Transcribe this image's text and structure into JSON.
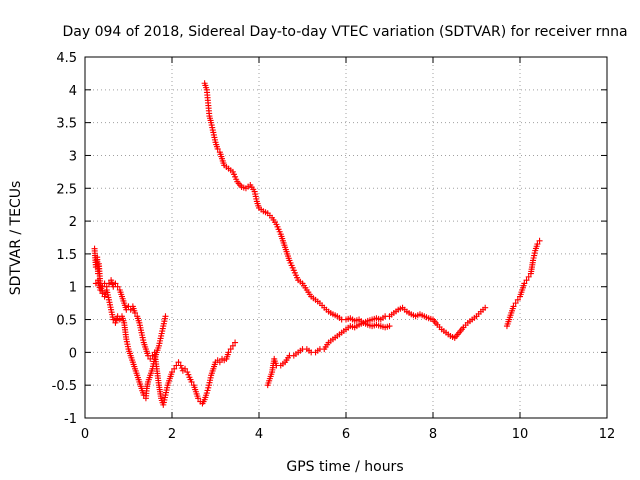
{
  "chart_data": {
    "type": "scatter",
    "title": "Day 094 of 2018, Sidereal Day-to-day VTEC variation (SDTVAR) for receiver rnna",
    "xlabel": "GPS time / hours",
    "ylabel": "SDTVAR / TECUs",
    "xlim": [
      0,
      12
    ],
    "ylim": [
      -1,
      4.5
    ],
    "xticks": [
      0,
      2,
      4,
      6,
      8,
      10,
      12
    ],
    "yticks": [
      -1,
      -0.5,
      0,
      0.5,
      1,
      1.5,
      2,
      2.5,
      3,
      3.5,
      4,
      4.5
    ],
    "grid": true,
    "marker": "+",
    "color": "#ff0000",
    "series": [
      {
        "points": [
          [
            0.22,
            1.58
          ],
          [
            0.25,
            1.3
          ],
          [
            0.28,
            1.45
          ],
          [
            0.3,
            1.2
          ],
          [
            0.32,
            1.35
          ],
          [
            0.35,
            1.05
          ],
          [
            0.4,
            0.9
          ],
          [
            0.45,
            0.85
          ],
          [
            0.5,
            0.95
          ],
          [
            0.55,
            0.8
          ],
          [
            0.6,
            0.65
          ],
          [
            0.65,
            0.5
          ],
          [
            0.7,
            0.45
          ],
          [
            0.75,
            0.55
          ],
          [
            0.8,
            0.5
          ],
          [
            0.85,
            0.55
          ],
          [
            0.9,
            0.45
          ],
          [
            0.95,
            0.2
          ],
          [
            1.0,
            0.05
          ],
          [
            1.05,
            -0.05
          ],
          [
            1.1,
            -0.15
          ],
          [
            1.15,
            -0.25
          ],
          [
            1.2,
            -0.35
          ],
          [
            1.25,
            -0.45
          ],
          [
            1.3,
            -0.55
          ],
          [
            1.35,
            -0.65
          ],
          [
            1.4,
            -0.7
          ],
          [
            1.42,
            -0.55
          ],
          [
            1.45,
            -0.45
          ],
          [
            1.5,
            -0.35
          ],
          [
            1.55,
            -0.25
          ],
          [
            1.6,
            -0.1
          ],
          [
            1.65,
            0.0
          ],
          [
            1.7,
            0.1
          ],
          [
            1.75,
            0.25
          ],
          [
            1.8,
            0.4
          ],
          [
            1.85,
            0.55
          ]
        ]
      },
      {
        "points": [
          [
            0.25,
            1.05
          ],
          [
            0.3,
            1.1
          ],
          [
            0.35,
            0.95
          ],
          [
            0.4,
            1.0
          ],
          [
            0.45,
            1.05
          ],
          [
            0.5,
            1.0
          ],
          [
            0.55,
            1.05
          ],
          [
            0.6,
            1.1
          ],
          [
            0.65,
            1.0
          ],
          [
            0.7,
            1.05
          ],
          [
            0.75,
            1.0
          ],
          [
            0.8,
            0.95
          ],
          [
            0.85,
            0.85
          ],
          [
            0.9,
            0.75
          ],
          [
            0.95,
            0.65
          ],
          [
            1.0,
            0.7
          ],
          [
            1.05,
            0.65
          ],
          [
            1.1,
            0.7
          ],
          [
            1.15,
            0.6
          ],
          [
            1.2,
            0.55
          ],
          [
            1.25,
            0.45
          ],
          [
            1.3,
            0.3
          ],
          [
            1.35,
            0.15
          ],
          [
            1.4,
            0.05
          ],
          [
            1.45,
            -0.05
          ],
          [
            1.5,
            -0.1
          ],
          [
            1.55,
            -0.05
          ],
          [
            1.6,
            0.0
          ],
          [
            1.65,
            -0.25
          ],
          [
            1.7,
            -0.5
          ],
          [
            1.75,
            -0.7
          ],
          [
            1.8,
            -0.8
          ],
          [
            1.85,
            -0.65
          ],
          [
            1.9,
            -0.5
          ],
          [
            1.95,
            -0.4
          ],
          [
            2.0,
            -0.3
          ],
          [
            2.05,
            -0.25
          ],
          [
            2.1,
            -0.2
          ],
          [
            2.15,
            -0.15
          ],
          [
            2.2,
            -0.2
          ],
          [
            2.25,
            -0.28
          ],
          [
            2.3,
            -0.25
          ],
          [
            2.35,
            -0.3
          ],
          [
            2.4,
            -0.38
          ],
          [
            2.45,
            -0.45
          ],
          [
            2.5,
            -0.5
          ],
          [
            2.55,
            -0.6
          ],
          [
            2.6,
            -0.7
          ],
          [
            2.65,
            -0.75
          ],
          [
            2.7,
            -0.78
          ],
          [
            2.75,
            -0.72
          ],
          [
            2.8,
            -0.62
          ],
          [
            2.85,
            -0.5
          ],
          [
            2.9,
            -0.35
          ],
          [
            2.95,
            -0.25
          ],
          [
            3.0,
            -0.15
          ],
          [
            3.05,
            -0.12
          ],
          [
            3.1,
            -0.15
          ],
          [
            3.15,
            -0.1
          ],
          [
            3.2,
            -0.12
          ],
          [
            3.25,
            -0.1
          ],
          [
            3.3,
            0.0
          ],
          [
            3.35,
            0.05
          ],
          [
            3.4,
            0.1
          ],
          [
            3.45,
            0.15
          ]
        ]
      },
      {
        "points": [
          [
            2.75,
            4.1
          ],
          [
            2.8,
            4.0
          ],
          [
            2.83,
            3.8
          ],
          [
            2.86,
            3.6
          ],
          [
            2.9,
            3.5
          ],
          [
            2.95,
            3.35
          ],
          [
            3.0,
            3.2
          ],
          [
            3.05,
            3.1
          ],
          [
            3.1,
            3.05
          ],
          [
            3.15,
            2.95
          ],
          [
            3.2,
            2.85
          ],
          [
            3.3,
            2.8
          ],
          [
            3.4,
            2.75
          ],
          [
            3.5,
            2.6
          ],
          [
            3.6,
            2.52
          ],
          [
            3.7,
            2.5
          ],
          [
            3.8,
            2.55
          ],
          [
            3.9,
            2.45
          ],
          [
            3.95,
            2.3
          ],
          [
            4.0,
            2.2
          ],
          [
            4.1,
            2.15
          ],
          [
            4.2,
            2.12
          ],
          [
            4.3,
            2.05
          ],
          [
            4.4,
            1.95
          ],
          [
            4.5,
            1.8
          ],
          [
            4.6,
            1.6
          ],
          [
            4.7,
            1.4
          ],
          [
            4.8,
            1.25
          ],
          [
            4.9,
            1.1
          ],
          [
            5.0,
            1.05
          ],
          [
            5.1,
            0.95
          ],
          [
            5.2,
            0.85
          ],
          [
            5.3,
            0.8
          ],
          [
            5.4,
            0.75
          ],
          [
            5.5,
            0.68
          ],
          [
            5.6,
            0.62
          ],
          [
            5.7,
            0.58
          ],
          [
            5.8,
            0.55
          ],
          [
            5.9,
            0.5
          ],
          [
            6.0,
            0.5
          ],
          [
            6.1,
            0.52
          ],
          [
            6.2,
            0.48
          ],
          [
            6.3,
            0.5
          ],
          [
            6.4,
            0.45
          ],
          [
            6.5,
            0.42
          ],
          [
            6.6,
            0.4
          ],
          [
            6.7,
            0.42
          ],
          [
            6.8,
            0.4
          ],
          [
            6.9,
            0.38
          ],
          [
            7.0,
            0.4
          ]
        ]
      },
      {
        "points": [
          [
            4.2,
            -0.5
          ],
          [
            4.25,
            -0.4
          ],
          [
            4.3,
            -0.3
          ],
          [
            4.35,
            -0.1
          ],
          [
            4.4,
            -0.2
          ],
          [
            4.5,
            -0.2
          ],
          [
            4.6,
            -0.15
          ],
          [
            4.7,
            -0.05
          ],
          [
            4.8,
            -0.05
          ],
          [
            4.9,
            0.0
          ],
          [
            5.0,
            0.05
          ],
          [
            5.1,
            0.05
          ],
          [
            5.2,
            0.0
          ],
          [
            5.3,
            0.0
          ],
          [
            5.4,
            0.05
          ],
          [
            5.5,
            0.05
          ],
          [
            5.6,
            0.15
          ],
          [
            5.7,
            0.2
          ],
          [
            5.8,
            0.25
          ],
          [
            5.9,
            0.3
          ],
          [
            6.0,
            0.35
          ],
          [
            6.1,
            0.4
          ],
          [
            6.2,
            0.38
          ],
          [
            6.3,
            0.42
          ],
          [
            6.4,
            0.45
          ],
          [
            6.5,
            0.48
          ],
          [
            6.6,
            0.5
          ],
          [
            6.7,
            0.52
          ],
          [
            6.8,
            0.5
          ],
          [
            6.9,
            0.55
          ],
          [
            7.0,
            0.55
          ],
          [
            7.1,
            0.6
          ],
          [
            7.2,
            0.65
          ],
          [
            7.3,
            0.68
          ],
          [
            7.4,
            0.62
          ],
          [
            7.5,
            0.58
          ],
          [
            7.6,
            0.55
          ],
          [
            7.7,
            0.58
          ],
          [
            7.8,
            0.55
          ],
          [
            7.9,
            0.52
          ],
          [
            8.0,
            0.5
          ],
          [
            8.1,
            0.42
          ],
          [
            8.2,
            0.35
          ],
          [
            8.3,
            0.3
          ],
          [
            8.4,
            0.25
          ],
          [
            8.5,
            0.22
          ],
          [
            8.6,
            0.3
          ],
          [
            8.7,
            0.38
          ],
          [
            8.8,
            0.45
          ],
          [
            8.9,
            0.5
          ],
          [
            9.0,
            0.55
          ],
          [
            9.1,
            0.62
          ],
          [
            9.2,
            0.68
          ]
        ]
      },
      {
        "points": [
          [
            9.7,
            0.4
          ],
          [
            9.75,
            0.5
          ],
          [
            9.8,
            0.6
          ],
          [
            9.85,
            0.7
          ],
          [
            9.9,
            0.75
          ],
          [
            9.95,
            0.8
          ],
          [
            10.0,
            0.85
          ],
          [
            10.05,
            0.95
          ],
          [
            10.1,
            1.05
          ],
          [
            10.15,
            1.1
          ],
          [
            10.2,
            1.15
          ],
          [
            10.25,
            1.2
          ],
          [
            10.3,
            1.4
          ],
          [
            10.35,
            1.55
          ],
          [
            10.4,
            1.65
          ],
          [
            10.45,
            1.7
          ]
        ]
      }
    ]
  }
}
